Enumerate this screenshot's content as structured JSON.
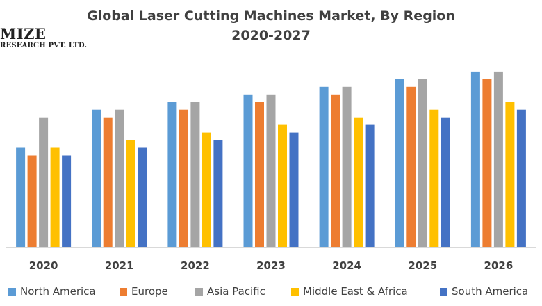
{
  "title_line1": "Global Laser Cutting Machines Market, By Region",
  "title_line2": "2020-2027",
  "logo": {
    "line1": "MIZE",
    "line2": "RESEARCH PVT. LTD."
  },
  "colors": {
    "north_america": "#5B9BD5",
    "europe": "#ED7D31",
    "asia_pacific": "#A5A5A5",
    "middle_east_africa": "#FFC000",
    "south_america": "#4472C4",
    "axis": "#d9d9d9",
    "text": "#404040"
  },
  "chart_data": {
    "type": "bar",
    "title": "Global Laser Cutting Machines Market, By Region 2020-2027",
    "categories": [
      "2020",
      "2021",
      "2022",
      "2023",
      "2024",
      "2025",
      "2026"
    ],
    "series": [
      {
        "name": "North America",
        "values": [
          13,
          18,
          19,
          20,
          21,
          22,
          23
        ]
      },
      {
        "name": "Europe",
        "values": [
          12,
          17,
          18,
          19,
          20,
          21,
          22
        ]
      },
      {
        "name": "Asia Pacific",
        "values": [
          17,
          18,
          19,
          20,
          21,
          22,
          23
        ]
      },
      {
        "name": "Middle East & Africa",
        "values": [
          13,
          14,
          15,
          16,
          17,
          18,
          19
        ]
      },
      {
        "name": "South America",
        "values": [
          12,
          13,
          14,
          15,
          16,
          17,
          18
        ]
      }
    ],
    "ylim": [
      0,
      25
    ],
    "grid": false,
    "y_axis_shown": false,
    "legend_position": "bottom"
  }
}
